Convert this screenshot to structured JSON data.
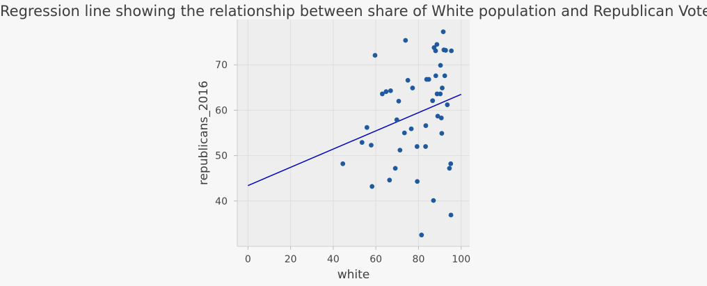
{
  "chart_data": {
    "type": "scatter",
    "title": "Regression line showing the relationship between share of White population and Republican Voters",
    "xlabel": "white",
    "ylabel": "republicans_2016",
    "xlim": [
      -5,
      104
    ],
    "ylim": [
      30,
      80
    ],
    "xticks": [
      0,
      20,
      40,
      60,
      80,
      100
    ],
    "yticks": [
      40,
      50,
      60,
      70
    ],
    "grid": true,
    "colors": {
      "points": "#1f5aa0",
      "line": "#0000cc",
      "plot_bg": "#eeeeee",
      "page_bg": "#f7f7f7",
      "grid": "#dedede"
    },
    "regression_line": {
      "x": [
        0,
        100
      ],
      "y": [
        43.4,
        63.5
      ]
    },
    "points": [
      {
        "x": 44.5,
        "y": 48.2
      },
      {
        "x": 53.5,
        "y": 52.9
      },
      {
        "x": 55.8,
        "y": 56.2
      },
      {
        "x": 57.8,
        "y": 52.3
      },
      {
        "x": 58.2,
        "y": 43.2
      },
      {
        "x": 59.6,
        "y": 72.1
      },
      {
        "x": 63.0,
        "y": 63.6
      },
      {
        "x": 64.8,
        "y": 64.1
      },
      {
        "x": 66.4,
        "y": 44.6
      },
      {
        "x": 66.9,
        "y": 64.3
      },
      {
        "x": 69.1,
        "y": 47.2
      },
      {
        "x": 69.8,
        "y": 57.9
      },
      {
        "x": 70.7,
        "y": 62.0
      },
      {
        "x": 71.3,
        "y": 51.2
      },
      {
        "x": 73.4,
        "y": 55.0
      },
      {
        "x": 73.9,
        "y": 75.4
      },
      {
        "x": 75.0,
        "y": 66.6
      },
      {
        "x": 76.6,
        "y": 55.9
      },
      {
        "x": 77.2,
        "y": 64.9
      },
      {
        "x": 79.3,
        "y": 52.0
      },
      {
        "x": 79.4,
        "y": 44.3
      },
      {
        "x": 81.4,
        "y": 32.5
      },
      {
        "x": 83.3,
        "y": 52.0
      },
      {
        "x": 83.4,
        "y": 56.6
      },
      {
        "x": 83.8,
        "y": 66.8
      },
      {
        "x": 84.8,
        "y": 66.8
      },
      {
        "x": 86.6,
        "y": 62.1
      },
      {
        "x": 87.0,
        "y": 40.1
      },
      {
        "x": 87.3,
        "y": 73.8
      },
      {
        "x": 88.0,
        "y": 73.1
      },
      {
        "x": 88.1,
        "y": 67.6
      },
      {
        "x": 88.6,
        "y": 74.5
      },
      {
        "x": 88.7,
        "y": 63.6
      },
      {
        "x": 89.0,
        "y": 58.7
      },
      {
        "x": 90.2,
        "y": 63.6
      },
      {
        "x": 90.3,
        "y": 69.9
      },
      {
        "x": 90.7,
        "y": 58.3
      },
      {
        "x": 90.9,
        "y": 54.9
      },
      {
        "x": 91.1,
        "y": 64.9
      },
      {
        "x": 91.6,
        "y": 77.3
      },
      {
        "x": 91.9,
        "y": 73.3
      },
      {
        "x": 92.3,
        "y": 67.6
      },
      {
        "x": 92.7,
        "y": 73.2
      },
      {
        "x": 93.5,
        "y": 61.2
      },
      {
        "x": 94.5,
        "y": 47.2
      },
      {
        "x": 95.1,
        "y": 48.2
      },
      {
        "x": 95.4,
        "y": 73.1
      },
      {
        "x": 95.2,
        "y": 36.9
      }
    ]
  }
}
